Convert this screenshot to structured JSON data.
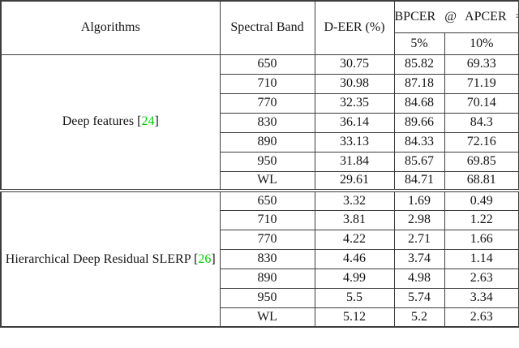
{
  "table": {
    "header": {
      "col_algorithms": "Algorithms",
      "col_spectral_band": "Spectral Band",
      "col_deer": "D-EER (%)",
      "col_bpcer": "BPCER @ APCER =",
      "sub_apcer_5": "5%",
      "sub_apcer_10": "10%"
    },
    "colors": {
      "citation_green": "#00cc00",
      "border": "#3d3d3d"
    },
    "groups": [
      {
        "algorithm": "Deep features",
        "citation": "24",
        "rows": [
          {
            "band": "650",
            "deer": "30.75",
            "bpcer5": "85.82",
            "bpcer10": "69.33"
          },
          {
            "band": "710",
            "deer": "30.98",
            "bpcer5": "87.18",
            "bpcer10": "71.19"
          },
          {
            "band": "770",
            "deer": "32.35",
            "bpcer5": "84.68",
            "bpcer10": "70.14"
          },
          {
            "band": "830",
            "deer": "36.14",
            "bpcer5": "89.66",
            "bpcer10": "84.3"
          },
          {
            "band": "890",
            "deer": "33.13",
            "bpcer5": "84.33",
            "bpcer10": "72.16"
          },
          {
            "band": "950",
            "deer": "31.84",
            "bpcer5": "85.67",
            "bpcer10": "69.85"
          },
          {
            "band": "WL",
            "deer": "29.61",
            "bpcer5": "84.71",
            "bpcer10": "68.81"
          }
        ]
      },
      {
        "algorithm": "Hierarchical Deep Residual SLERP",
        "citation": "26",
        "rows": [
          {
            "band": "650",
            "deer": "3.32",
            "bpcer5": "1.69",
            "bpcer10": "0.49"
          },
          {
            "band": "710",
            "deer": "3.81",
            "bpcer5": "2.98",
            "bpcer10": "1.22"
          },
          {
            "band": "770",
            "deer": "4.22",
            "bpcer5": "2.71",
            "bpcer10": "1.66"
          },
          {
            "band": "830",
            "deer": "4.46",
            "bpcer5": "3.74",
            "bpcer10": "1.14"
          },
          {
            "band": "890",
            "deer": "4.99",
            "bpcer5": "4.98",
            "bpcer10": "2.63"
          },
          {
            "band": "950",
            "deer": "5.5",
            "bpcer5": "5.74",
            "bpcer10": "3.34"
          },
          {
            "band": "WL",
            "deer": "5.12",
            "bpcer5": "5.2",
            "bpcer10": "2.63"
          }
        ]
      }
    ]
  }
}
